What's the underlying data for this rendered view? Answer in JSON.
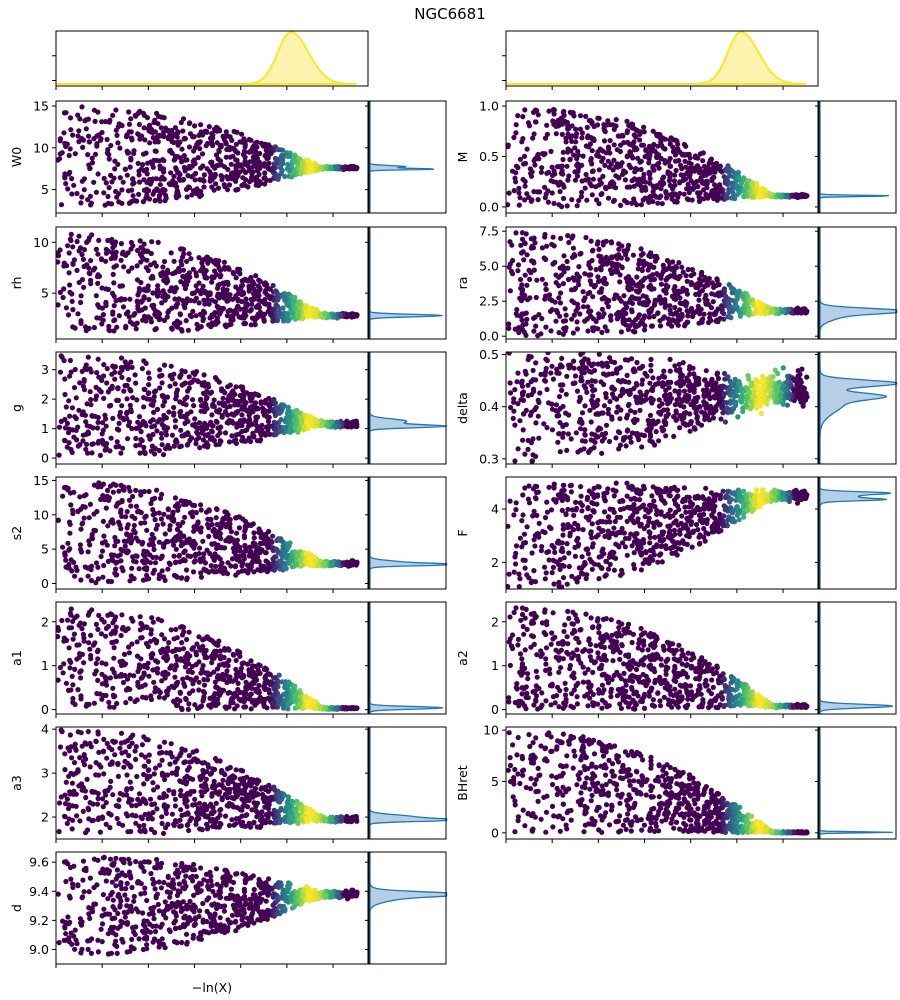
{
  "chart_data": {
    "type": "scatter",
    "title": "NGC6681",
    "xlabel": "−ln(X)",
    "colormap": "viridis",
    "point_color_low": "#440154",
    "top_density_color": "#fde725",
    "top_density_fill": "#fff3b0",
    "marginal_color": "#1f77b4",
    "marginal_fill": "#b7cfe6",
    "panels": [
      {
        "name": "W0",
        "ylim": [
          2.2,
          15.6
        ],
        "yticks": [
          5,
          10,
          15
        ],
        "tick_labels": [
          "5",
          "10",
          "15"
        ],
        "range": [
          3,
          15
        ],
        "converge": 7.6,
        "spread": 0.15,
        "marginal_peaks": [
          {
            "v": 7.75,
            "w": 0.12,
            "h": 0.5
          },
          {
            "v": 7.45,
            "w": 0.08,
            "h": 0.9
          }
        ]
      },
      {
        "name": "M",
        "ylim": [
          -0.06,
          1.05
        ],
        "yticks": [
          0,
          0.5,
          1.0
        ],
        "tick_labels": [
          "0.0",
          "0.5",
          "1.0"
        ],
        "range": [
          0,
          1.0
        ],
        "converge": 0.11,
        "spread": 0.01,
        "marginal_peaks": [
          {
            "v": 0.11,
            "w": 0.006,
            "h": 1.0
          }
        ]
      },
      {
        "name": "rh",
        "ylim": [
          0.5,
          11.5
        ],
        "yticks": [
          5,
          10
        ],
        "tick_labels": [
          "5",
          "10"
        ],
        "range": [
          1,
          11
        ],
        "converge": 2.8,
        "spread": 0.2,
        "marginal_peaks": [
          {
            "v": 2.8,
            "w": 0.12,
            "h": 1.0
          }
        ]
      },
      {
        "name": "ra",
        "ylim": [
          -0.2,
          7.8
        ],
        "yticks": [
          0,
          2.5,
          5.0,
          7.5
        ],
        "tick_labels": [
          "0.0",
          "2.5",
          "5.0",
          "7.5"
        ],
        "range": [
          0,
          7.5
        ],
        "converge": 1.8,
        "spread": 0.15,
        "marginal_peaks": [
          {
            "v": 1.8,
            "w": 0.18,
            "h": 1.0
          },
          {
            "v": 1.5,
            "w": 0.35,
            "h": 0.3
          }
        ]
      },
      {
        "name": "g",
        "ylim": [
          -0.2,
          3.6
        ],
        "yticks": [
          0,
          1,
          2,
          3
        ],
        "tick_labels": [
          "0",
          "1",
          "2",
          "3"
        ],
        "range": [
          0,
          3.5
        ],
        "converge": 1.15,
        "spread": 0.1,
        "marginal_peaks": [
          {
            "v": 1.25,
            "w": 0.08,
            "h": 0.5
          },
          {
            "v": 1.08,
            "w": 0.05,
            "h": 1.0
          }
        ]
      },
      {
        "name": "delta",
        "ylim": [
          0.29,
          0.505
        ],
        "yticks": [
          0.3,
          0.4,
          0.5
        ],
        "tick_labels": [
          "0.3",
          "0.4",
          "0.5"
        ],
        "range": [
          0.3,
          0.5
        ],
        "converge": 0.435,
        "spread": 0.03,
        "marginal_peaks": [
          {
            "v": 0.445,
            "w": 0.006,
            "h": 1.0
          },
          {
            "v": 0.42,
            "w": 0.006,
            "h": 0.6
          },
          {
            "v": 0.41,
            "w": 0.02,
            "h": 0.35
          }
        ]
      },
      {
        "name": "s2",
        "ylim": [
          -0.8,
          15.5
        ],
        "yticks": [
          0,
          5,
          10,
          15
        ],
        "tick_labels": [
          "0",
          "5",
          "10",
          "15"
        ],
        "range": [
          0,
          15
        ],
        "converge": 2.9,
        "spread": 0.3,
        "marginal_peaks": [
          {
            "v": 3.0,
            "w": 0.3,
            "h": 0.5
          },
          {
            "v": 2.75,
            "w": 0.15,
            "h": 0.9
          }
        ]
      },
      {
        "name": "F",
        "ylim": [
          1.0,
          5.2
        ],
        "yticks": [
          2,
          4
        ],
        "tick_labels": [
          "2",
          "4"
        ],
        "range": [
          1,
          5
        ],
        "converge": 4.5,
        "spread": 0.18,
        "marginal_peaks": [
          {
            "v": 4.6,
            "w": 0.05,
            "h": 0.8
          },
          {
            "v": 4.45,
            "w": 0.1,
            "h": 0.5
          },
          {
            "v": 4.35,
            "w": 0.04,
            "h": 0.6
          }
        ]
      },
      {
        "name": "a1",
        "ylim": [
          -0.1,
          2.45
        ],
        "yticks": [
          0,
          1,
          2
        ],
        "tick_labels": [
          "0",
          "1",
          "2"
        ],
        "range": [
          0,
          2.35
        ],
        "converge": 0.03,
        "spread": 0.02,
        "marginal_peaks": [
          {
            "v": 0.04,
            "w": 0.03,
            "h": 1.0
          }
        ]
      },
      {
        "name": "a2",
        "ylim": [
          -0.1,
          2.45
        ],
        "yticks": [
          0,
          1,
          2
        ],
        "tick_labels": [
          "0",
          "1",
          "2"
        ],
        "range": [
          0,
          2.35
        ],
        "converge": 0.08,
        "spread": 0.03,
        "marginal_peaks": [
          {
            "v": 0.08,
            "w": 0.04,
            "h": 1.0
          }
        ]
      },
      {
        "name": "a3",
        "ylim": [
          1.5,
          4.05
        ],
        "yticks": [
          2,
          3,
          4
        ],
        "tick_labels": [
          "2",
          "3",
          "4"
        ],
        "range": [
          1.6,
          4.0
        ],
        "converge": 1.95,
        "spread": 0.06,
        "marginal_peaks": [
          {
            "v": 2.0,
            "w": 0.05,
            "h": 0.6
          },
          {
            "v": 1.93,
            "w": 0.03,
            "h": 1.0
          }
        ]
      },
      {
        "name": "BHret",
        "ylim": [
          -0.6,
          10.3
        ],
        "yticks": [
          0,
          5,
          10
        ],
        "tick_labels": [
          "0",
          "5",
          "10"
        ],
        "range": [
          0,
          10
        ],
        "converge": 0.05,
        "spread": 0.05,
        "marginal_peaks": [
          {
            "v": 0.05,
            "w": 0.05,
            "h": 1.0
          }
        ]
      },
      {
        "name": "d",
        "ylim": [
          8.9,
          9.67
        ],
        "yticks": [
          9.0,
          9.2,
          9.4,
          9.6
        ],
        "tick_labels": [
          "9.0",
          "9.2",
          "9.4",
          "9.6"
        ],
        "range": [
          8.95,
          9.65
        ],
        "converge": 9.38,
        "spread": 0.02,
        "marginal_peaks": [
          {
            "v": 9.38,
            "w": 0.015,
            "h": 1.0
          },
          {
            "v": 9.36,
            "w": 0.03,
            "h": 0.4
          }
        ]
      }
    ]
  }
}
